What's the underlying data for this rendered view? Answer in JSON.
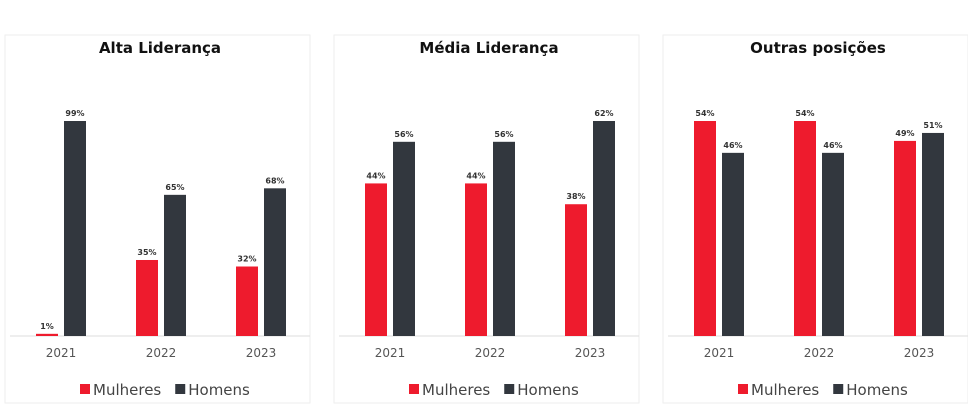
{
  "chart_data": [
    {
      "type": "bar",
      "title": "Alta Liderança",
      "categories": [
        "2021",
        "2022",
        "2023"
      ],
      "series": [
        {
          "name": "Mulheres",
          "color": "#ee1b2d",
          "values": [
            1,
            35,
            32
          ],
          "value_labels": [
            "1%",
            "35%",
            "32%"
          ]
        },
        {
          "name": "Homens",
          "color": "#32373e",
          "values": [
            99,
            65,
            68
          ],
          "value_labels": [
            "99%",
            "65%",
            "68%"
          ]
        }
      ]
    },
    {
      "type": "bar",
      "title": "Média Liderança",
      "categories": [
        "2021",
        "2022",
        "2023"
      ],
      "series": [
        {
          "name": "Mulheres",
          "color": "#ee1b2d",
          "values": [
            44,
            44,
            38
          ],
          "value_labels": [
            "44%",
            "44%",
            "38%"
          ]
        },
        {
          "name": "Homens",
          "color": "#32373e",
          "values": [
            56,
            56,
            62
          ],
          "value_labels": [
            "56%",
            "56%",
            "62%"
          ]
        }
      ]
    },
    {
      "type": "bar",
      "title": "Outras posições",
      "categories": [
        "2021",
        "2022",
        "2023"
      ],
      "series": [
        {
          "name": "Mulheres",
          "color": "#ee1b2d",
          "values": [
            54,
            54,
            49
          ],
          "value_labels": [
            "54%",
            "54%",
            "49%"
          ]
        },
        {
          "name": "Homens",
          "color": "#32373e",
          "values": [
            46,
            46,
            51
          ],
          "value_labels": [
            "46%",
            "46%",
            "51%"
          ]
        }
      ]
    }
  ]
}
